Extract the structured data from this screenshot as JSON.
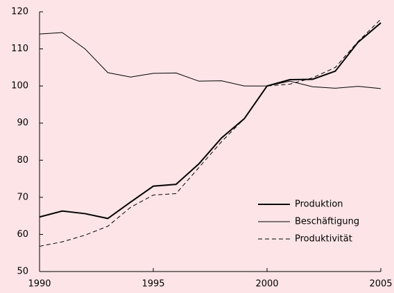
{
  "chart_data": {
    "type": "line",
    "x": [
      1990,
      1991,
      1992,
      1993,
      1994,
      1995,
      1996,
      1997,
      1998,
      1999,
      2000,
      2001,
      2002,
      2003,
      2004,
      2005
    ],
    "series": [
      {
        "name": "Produktion",
        "color": "#000000",
        "values": [
          64.7,
          66.3,
          65.6,
          64.3,
          68.7,
          73,
          73.5,
          79,
          86,
          91.2,
          100,
          101.7,
          101.8,
          104,
          111.8,
          117
        ]
      },
      {
        "name": "Beschäftigung",
        "color": "#000000",
        "values": [
          114,
          114.4,
          110,
          103.6,
          102.4,
          103.4,
          103.5,
          101.3,
          101.4,
          100,
          100,
          101.3,
          99.8,
          99.4,
          99.9,
          99.3
        ]
      },
      {
        "name": "Produktivität",
        "color": "#000000",
        "values": [
          56.8,
          58,
          59.8,
          62.2,
          67.3,
          70.6,
          71,
          78,
          85,
          91.2,
          100,
          100.5,
          102.2,
          105,
          112,
          118
        ]
      }
    ],
    "xlim": [
      1990,
      2005
    ],
    "xticks": [
      1990,
      1995,
      2000,
      2005
    ],
    "ylim": [
      50,
      120
    ],
    "yticks": [
      50,
      60,
      70,
      80,
      90,
      100,
      110,
      120
    ],
    "legend": "lower right"
  }
}
